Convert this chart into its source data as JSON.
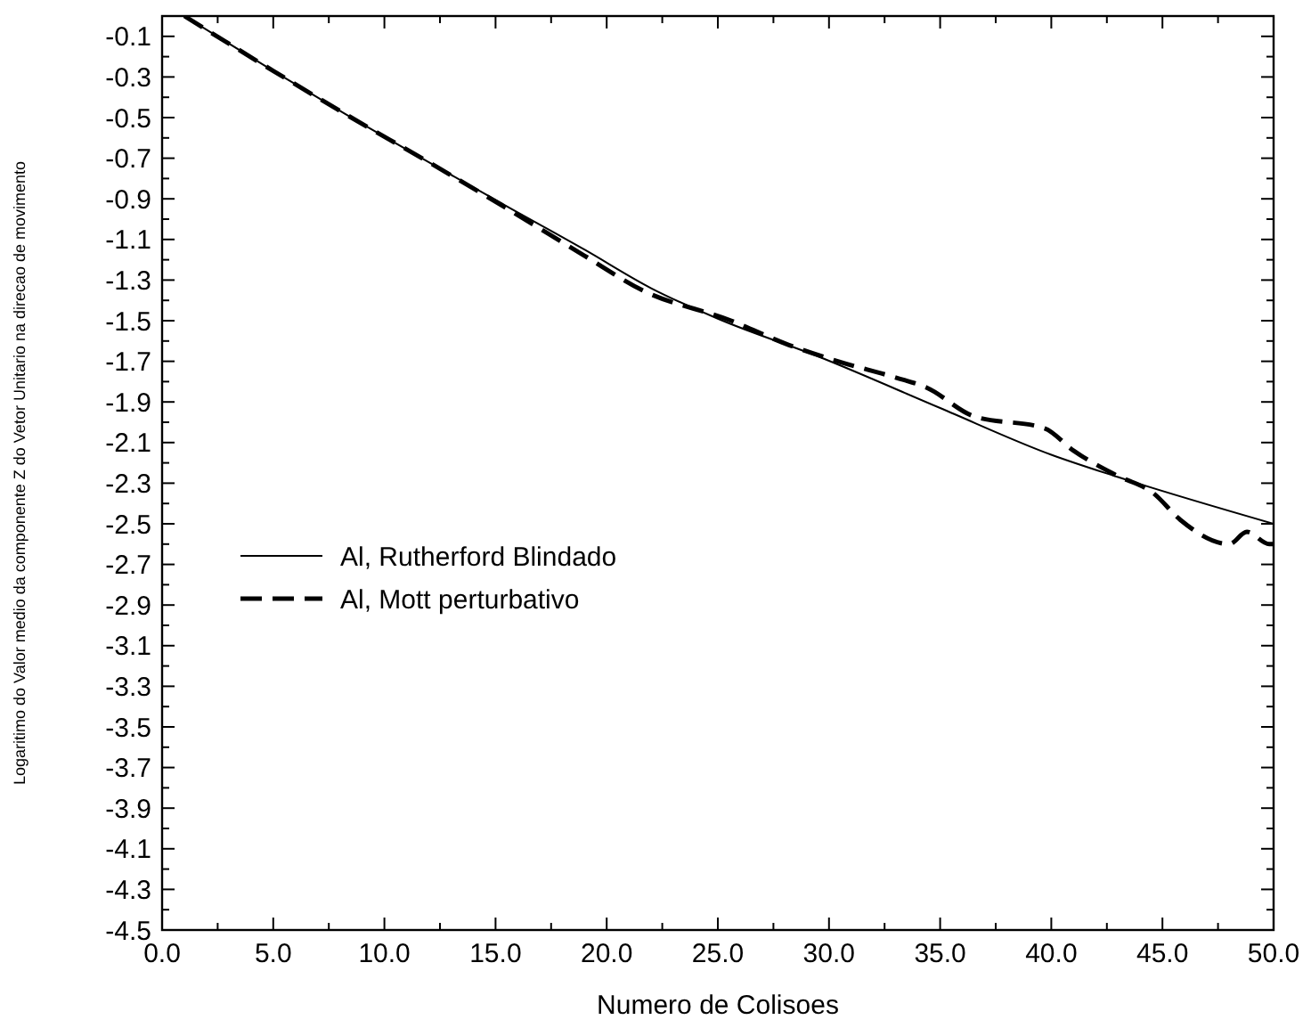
{
  "chart_data": {
    "type": "line",
    "xlabel": "Numero de Colisoes",
    "ylabel": "Logaritimo do Valor medio da componente Z do Vetor Unitario na direcao de movimento",
    "xlim": [
      0,
      50
    ],
    "ylim": [
      -4.5,
      0
    ],
    "xticks": [
      {
        "value": 0,
        "label": "0.0"
      },
      {
        "value": 2.5,
        "label": null
      },
      {
        "value": 5,
        "label": "5.0"
      },
      {
        "value": 7.5,
        "label": null
      },
      {
        "value": 10,
        "label": "10.0"
      },
      {
        "value": 12.5,
        "label": null
      },
      {
        "value": 15,
        "label": "15.0"
      },
      {
        "value": 17.5,
        "label": null
      },
      {
        "value": 20,
        "label": "20.0"
      },
      {
        "value": 22.5,
        "label": null
      },
      {
        "value": 25,
        "label": "25.0"
      },
      {
        "value": 27.5,
        "label": null
      },
      {
        "value": 30,
        "label": "30.0"
      },
      {
        "value": 32.5,
        "label": null
      },
      {
        "value": 35,
        "label": "35.0"
      },
      {
        "value": 37.5,
        "label": null
      },
      {
        "value": 40,
        "label": "40.0"
      },
      {
        "value": 42.5,
        "label": null
      },
      {
        "value": 45,
        "label": "45.0"
      },
      {
        "value": 47.5,
        "label": null
      },
      {
        "value": 50,
        "label": "50.0"
      }
    ],
    "yticks": [
      -0.1,
      -0.3,
      -0.5,
      -0.7,
      -0.9,
      -1.1,
      -1.3,
      -1.5,
      -1.7,
      -1.9,
      -2.1,
      -2.3,
      -2.5,
      -2.7,
      -2.9,
      -3.1,
      -3.3,
      -3.5,
      -3.7,
      -3.9,
      -4.1,
      -4.3,
      -4.5,
      {
        "value": -0.2,
        "label": null
      },
      {
        "value": -0.4,
        "label": null
      },
      {
        "value": -0.6,
        "label": null
      },
      {
        "value": -0.8,
        "label": null
      },
      {
        "value": -1.0,
        "label": null
      },
      {
        "value": -1.2,
        "label": null
      },
      {
        "value": -1.4,
        "label": null
      },
      {
        "value": -1.6,
        "label": null
      },
      {
        "value": -1.8,
        "label": null
      },
      {
        "value": -2.0,
        "label": null
      },
      {
        "value": -2.2,
        "label": null
      },
      {
        "value": -2.4,
        "label": null
      },
      {
        "value": -2.6,
        "label": null
      },
      {
        "value": -2.8,
        "label": null
      },
      {
        "value": -3.0,
        "label": null
      },
      {
        "value": -3.2,
        "label": null
      },
      {
        "value": -3.4,
        "label": null
      },
      {
        "value": -3.6,
        "label": null
      },
      {
        "value": -3.8,
        "label": null
      },
      {
        "value": -4.0,
        "label": null
      },
      {
        "value": -4.2,
        "label": null
      },
      {
        "value": -4.4,
        "label": null
      }
    ],
    "grid": false,
    "legend": "left",
    "marker": "none",
    "series": [
      {
        "name": "Al, Rutherford Blindado",
        "color": "#000000",
        "line_style": "solid",
        "x": [
          1,
          5,
          8.2,
          12,
          15.4,
          19,
          22,
          25,
          29.6,
          35,
          40,
          43,
          50
        ],
        "values": [
          0,
          -0.27,
          -0.48,
          -0.72,
          -0.93,
          -1.15,
          -1.34,
          -1.49,
          -1.68,
          -1.93,
          -2.16,
          -2.27,
          -2.5
        ]
      },
      {
        "name": "Al, Mott perturbativo",
        "color": "#000000",
        "line_style": "dashed",
        "x": [
          1,
          5,
          8.2,
          12,
          15.4,
          19,
          21.6,
          25.6,
          28.2,
          30.4,
          33,
          34.4,
          36.5,
          39.7,
          41,
          42.9,
          44.6,
          45.8,
          48,
          48.8,
          49.8,
          50
        ],
        "values": [
          0,
          -0.27,
          -0.48,
          -0.72,
          -0.94,
          -1.18,
          -1.35,
          -1.5,
          -1.62,
          -1.7,
          -1.78,
          -1.83,
          -1.97,
          -2.03,
          -2.14,
          -2.26,
          -2.35,
          -2.48,
          -2.6,
          -2.54,
          -2.6,
          -2.6
        ]
      }
    ]
  }
}
